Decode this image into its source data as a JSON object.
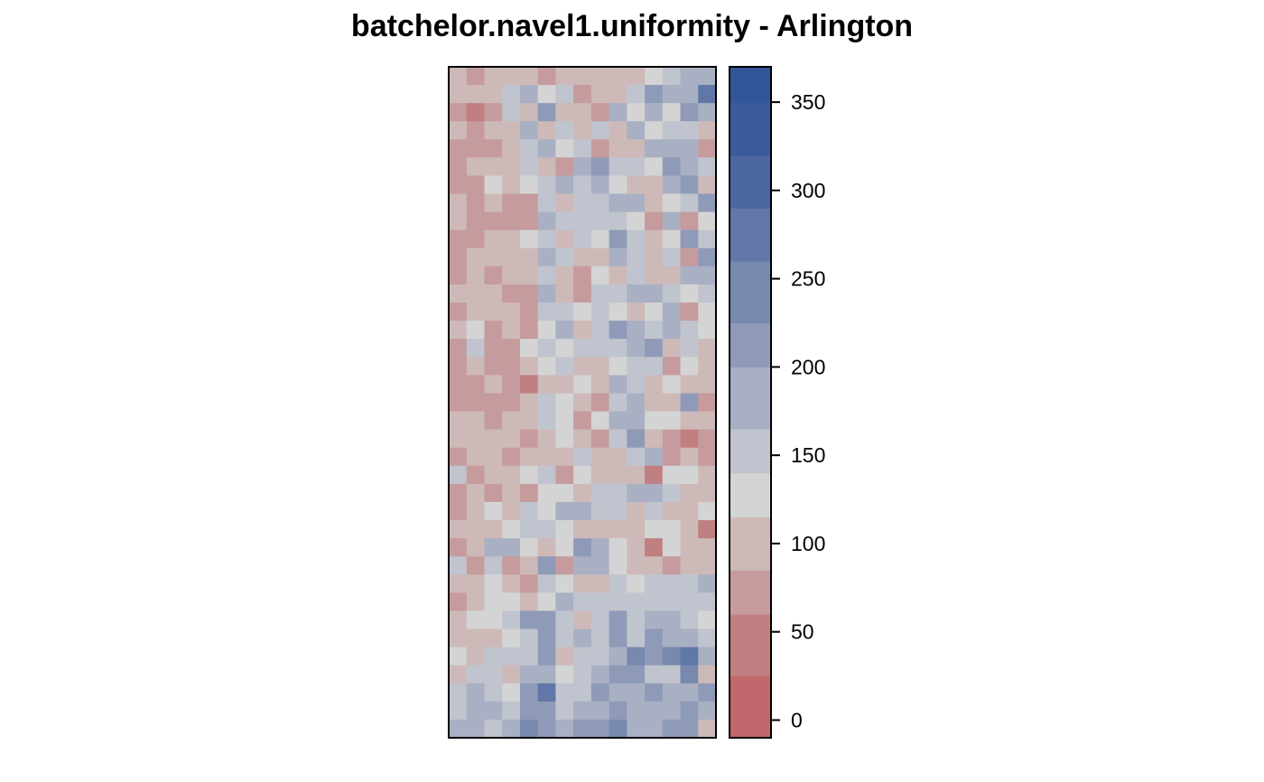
{
  "chart_data": {
    "type": "heatmap",
    "title": "batchelor.navel1.uniformity - Arlington",
    "xlabel": "",
    "ylabel": "",
    "n_cols": 15,
    "n_rows": 37,
    "grid": false,
    "legend": {
      "placement": "right",
      "type": "colorbar",
      "range": [
        -10,
        370
      ],
      "ticks": [
        0,
        50,
        100,
        150,
        200,
        250,
        300,
        350
      ],
      "tick_labels": [
        "0",
        "50",
        "100",
        "150",
        "200",
        "250",
        "300",
        "350"
      ],
      "bins": [
        -10,
        25,
        60,
        85,
        115,
        140,
        165,
        200,
        225,
        260,
        290,
        320,
        350,
        370
      ],
      "colors": [
        "#c0686b",
        "#c07f81",
        "#c69b9d",
        "#ceb9b9",
        "#d4d4d4",
        "#c0c4ce",
        "#a9b0c3",
        "#8f9ab8",
        "#7789ae",
        "#6077a8",
        "#4c66a1",
        "#3a5a9b",
        "#33569a"
      ]
    },
    "row_order": "top-to-bottom",
    "values": [
      [
        90,
        80,
        100,
        90,
        100,
        80,
        110,
        95,
        100,
        90,
        110,
        120,
        150,
        180,
        170
      ],
      [
        95,
        100,
        90,
        150,
        190,
        130,
        140,
        60,
        95,
        100,
        140,
        200,
        180,
        170,
        270
      ],
      [
        80,
        40,
        70,
        160,
        110,
        200,
        90,
        110,
        80,
        170,
        130,
        180,
        120,
        220,
        180
      ],
      [
        85,
        70,
        90,
        110,
        180,
        100,
        140,
        110,
        160,
        90,
        180,
        120,
        160,
        160,
        100
      ],
      [
        60,
        80,
        60,
        90,
        140,
        170,
        120,
        150,
        70,
        90,
        110,
        180,
        190,
        190,
        80
      ],
      [
        70,
        90,
        90,
        100,
        160,
        100,
        80,
        170,
        200,
        150,
        140,
        120,
        200,
        180,
        140
      ],
      [
        70,
        60,
        130,
        100,
        120,
        150,
        190,
        140,
        170,
        120,
        90,
        100,
        170,
        200,
        90
      ],
      [
        90,
        80,
        100,
        60,
        80,
        160,
        110,
        140,
        150,
        190,
        170,
        100,
        130,
        160,
        200
      ],
      [
        100,
        80,
        70,
        80,
        60,
        180,
        140,
        140,
        140,
        150,
        130,
        70,
        170,
        60,
        130
      ],
      [
        60,
        80,
        90,
        110,
        120,
        140,
        110,
        150,
        130,
        220,
        160,
        100,
        120,
        200,
        140
      ],
      [
        80,
        90,
        110,
        100,
        90,
        180,
        150,
        100,
        110,
        170,
        150,
        110,
        150,
        60,
        200
      ],
      [
        70,
        100,
        70,
        110,
        100,
        160,
        90,
        60,
        120,
        90,
        140,
        100,
        110,
        180,
        170
      ],
      [
        90,
        100,
        110,
        80,
        80,
        190,
        100,
        80,
        160,
        140,
        180,
        180,
        140,
        120,
        150
      ],
      [
        80,
        110,
        90,
        90,
        60,
        150,
        160,
        130,
        140,
        130,
        110,
        130,
        180,
        60,
        120
      ],
      [
        100,
        120,
        70,
        90,
        80,
        130,
        180,
        110,
        140,
        210,
        170,
        160,
        170,
        140,
        120
      ],
      [
        60,
        140,
        80,
        60,
        120,
        150,
        120,
        160,
        150,
        140,
        190,
        210,
        110,
        150,
        110
      ],
      [
        70,
        90,
        80,
        80,
        110,
        120,
        150,
        110,
        100,
        130,
        140,
        150,
        80,
        120,
        100
      ],
      [
        60,
        80,
        90,
        70,
        50,
        90,
        100,
        120,
        110,
        170,
        150,
        90,
        130,
        100,
        110
      ],
      [
        60,
        80,
        70,
        80,
        100,
        140,
        130,
        100,
        80,
        160,
        190,
        100,
        100,
        200,
        70
      ],
      [
        90,
        90,
        70,
        90,
        90,
        150,
        130,
        80,
        130,
        170,
        170,
        130,
        120,
        90,
        90
      ],
      [
        100,
        90,
        110,
        90,
        80,
        110,
        130,
        110,
        80,
        140,
        220,
        110,
        80,
        50,
        70
      ],
      [
        70,
        90,
        90,
        80,
        100,
        110,
        110,
        160,
        90,
        110,
        150,
        180,
        80,
        100,
        80
      ],
      [
        160,
        80,
        90,
        110,
        120,
        140,
        70,
        130,
        110,
        90,
        100,
        50,
        130,
        120,
        110
      ],
      [
        80,
        90,
        80,
        100,
        60,
        120,
        130,
        90,
        160,
        150,
        180,
        190,
        150,
        110,
        100
      ],
      [
        70,
        90,
        130,
        100,
        150,
        130,
        170,
        170,
        140,
        140,
        110,
        150,
        110,
        90,
        130
      ],
      [
        90,
        90,
        110,
        130,
        160,
        140,
        120,
        100,
        110,
        110,
        110,
        120,
        120,
        90,
        30
      ],
      [
        70,
        100,
        170,
        190,
        130,
        110,
        130,
        200,
        170,
        130,
        90,
        50,
        130,
        110,
        90
      ],
      [
        160,
        80,
        150,
        60,
        100,
        200,
        80,
        180,
        180,
        120,
        100,
        100,
        80,
        100,
        110
      ],
      [
        90,
        100,
        120,
        90,
        80,
        150,
        130,
        100,
        90,
        150,
        120,
        140,
        140,
        140,
        180
      ],
      [
        80,
        100,
        130,
        130,
        110,
        130,
        180,
        150,
        150,
        160,
        160,
        140,
        140,
        160,
        140
      ],
      [
        100,
        120,
        130,
        150,
        200,
        200,
        160,
        110,
        150,
        210,
        150,
        190,
        180,
        150,
        130
      ],
      [
        100,
        90,
        110,
        120,
        150,
        200,
        140,
        180,
        160,
        220,
        160,
        200,
        170,
        170,
        140
      ],
      [
        130,
        110,
        140,
        140,
        150,
        210,
        100,
        160,
        140,
        180,
        250,
        200,
        230,
        260,
        170
      ],
      [
        110,
        150,
        150,
        100,
        190,
        170,
        120,
        150,
        180,
        200,
        200,
        150,
        140,
        230,
        110
      ],
      [
        140,
        180,
        160,
        130,
        200,
        260,
        150,
        140,
        210,
        190,
        180,
        200,
        170,
        180,
        210
      ],
      [
        140,
        170,
        190,
        140,
        200,
        200,
        140,
        190,
        190,
        210,
        180,
        190,
        170,
        220,
        180
      ],
      [
        170,
        190,
        150,
        190,
        250,
        200,
        180,
        200,
        200,
        250,
        180,
        180,
        200,
        200,
        110
      ]
    ]
  }
}
